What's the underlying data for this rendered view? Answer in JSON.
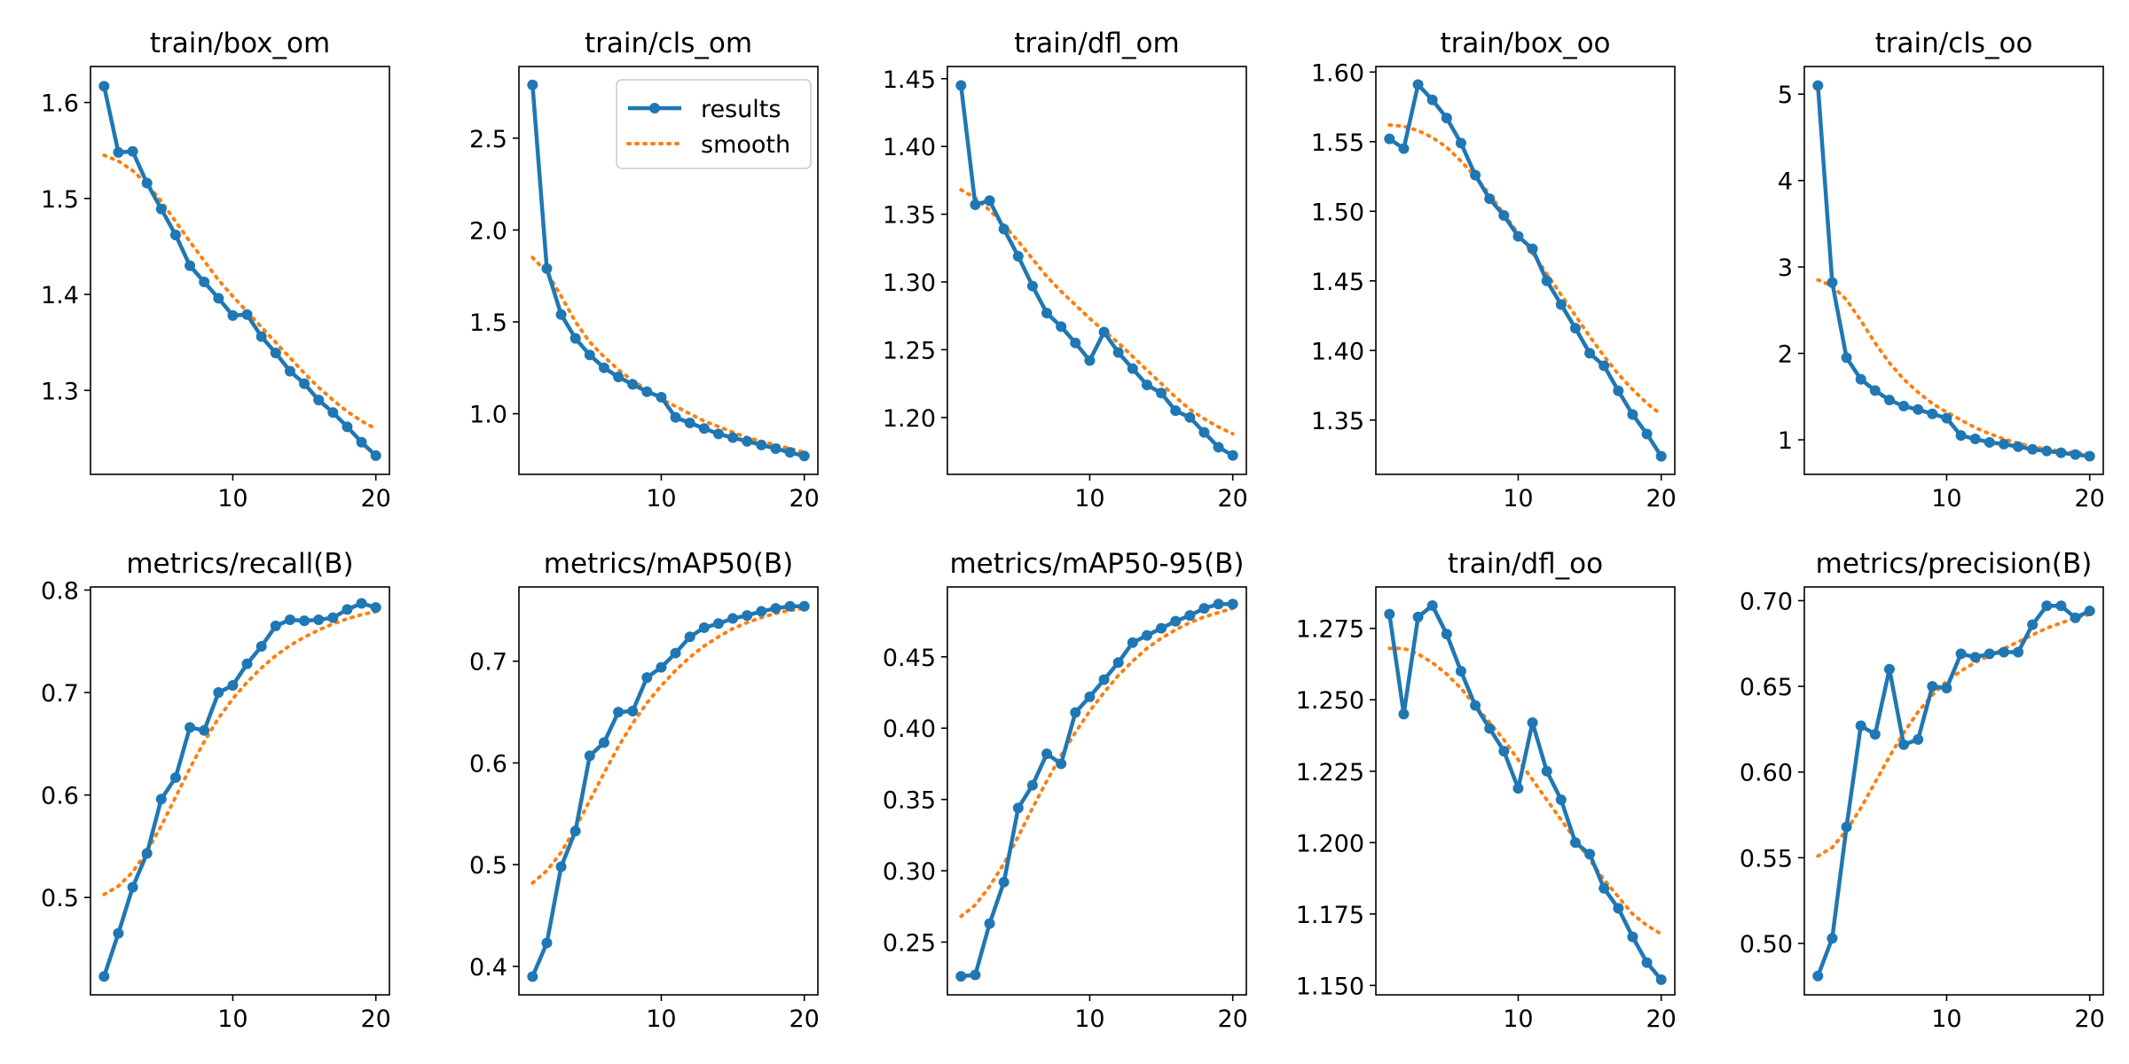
{
  "chart_data": [
    {
      "type": "line",
      "title": "train/box_om",
      "xlabel": "",
      "ylabel": "",
      "xlim": [
        0.05,
        20.95
      ],
      "ylim": [
        1.2125,
        1.6375
      ],
      "xticks": [
        10,
        20
      ],
      "yticks": [
        1.3,
        1.4,
        1.5,
        1.6
      ],
      "grid": false,
      "x": [
        1,
        2,
        3,
        4,
        5,
        6,
        7,
        8,
        9,
        10,
        11,
        12,
        13,
        14,
        15,
        16,
        17,
        18,
        19,
        20
      ],
      "series": [
        {
          "name": "results",
          "values": [
            1.617,
            1.548,
            1.549,
            1.516,
            1.489,
            1.462,
            1.43,
            1.413,
            1.396,
            1.378,
            1.379,
            1.356,
            1.339,
            1.32,
            1.307,
            1.29,
            1.277,
            1.262,
            1.246,
            1.232
          ]
        },
        {
          "name": "smooth",
          "values": [
            1.545,
            1.539,
            1.529,
            1.515,
            1.497,
            1.476,
            1.455,
            1.435,
            1.415,
            1.398,
            1.382,
            1.366,
            1.35,
            1.334,
            1.318,
            1.303,
            1.29,
            1.278,
            1.268,
            1.26
          ]
        }
      ]
    },
    {
      "type": "line",
      "title": "train/cls_om",
      "xlabel": "",
      "ylabel": "",
      "xlim": [
        0.05,
        20.95
      ],
      "ylim": [
        0.67,
        2.89
      ],
      "xticks": [
        10,
        20
      ],
      "yticks": [
        1.0,
        1.5,
        2.0,
        2.5
      ],
      "grid": false,
      "legend": {
        "position": "top-right",
        "entries": [
          "results",
          "smooth"
        ]
      },
      "x": [
        1,
        2,
        3,
        4,
        5,
        6,
        7,
        8,
        9,
        10,
        11,
        12,
        13,
        14,
        15,
        16,
        17,
        18,
        19,
        20
      ],
      "series": [
        {
          "name": "results",
          "values": [
            2.79,
            1.79,
            1.54,
            1.41,
            1.32,
            1.25,
            1.2,
            1.16,
            1.12,
            1.09,
            0.98,
            0.95,
            0.92,
            0.89,
            0.87,
            0.85,
            0.83,
            0.81,
            0.79,
            0.77
          ]
        },
        {
          "name": "smooth",
          "values": [
            1.85,
            1.77,
            1.64,
            1.5,
            1.39,
            1.31,
            1.24,
            1.18,
            1.13,
            1.08,
            1.04,
            1.0,
            0.96,
            0.93,
            0.9,
            0.87,
            0.85,
            0.83,
            0.81,
            0.79
          ]
        }
      ]
    },
    {
      "type": "line",
      "title": "train/dfl_om",
      "xlabel": "",
      "ylabel": "",
      "xlim": [
        0.05,
        20.95
      ],
      "ylim": [
        1.158,
        1.459
      ],
      "xticks": [
        10,
        20
      ],
      "yticks": [
        1.2,
        1.25,
        1.3,
        1.35,
        1.4,
        1.45
      ],
      "grid": false,
      "x": [
        1,
        2,
        3,
        4,
        5,
        6,
        7,
        8,
        9,
        10,
        11,
        12,
        13,
        14,
        15,
        16,
        17,
        18,
        19,
        20
      ],
      "series": [
        {
          "name": "results",
          "values": [
            1.445,
            1.357,
            1.36,
            1.339,
            1.319,
            1.297,
            1.277,
            1.267,
            1.255,
            1.242,
            1.263,
            1.248,
            1.236,
            1.224,
            1.218,
            1.205,
            1.2,
            1.189,
            1.178,
            1.172
          ]
        },
        {
          "name": "smooth",
          "values": [
            1.368,
            1.362,
            1.353,
            1.342,
            1.33,
            1.317,
            1.304,
            1.293,
            1.283,
            1.273,
            1.264,
            1.255,
            1.245,
            1.235,
            1.225,
            1.215,
            1.206,
            1.199,
            1.193,
            1.188
          ]
        }
      ]
    },
    {
      "type": "line",
      "title": "train/box_oo",
      "xlabel": "",
      "ylabel": "",
      "xlim": [
        0.05,
        20.95
      ],
      "ylim": [
        1.311,
        1.604
      ],
      "xticks": [
        10,
        20
      ],
      "yticks": [
        1.35,
        1.4,
        1.45,
        1.5,
        1.55,
        1.6
      ],
      "grid": false,
      "x": [
        1,
        2,
        3,
        4,
        5,
        6,
        7,
        8,
        9,
        10,
        11,
        12,
        13,
        14,
        15,
        16,
        17,
        18,
        19,
        20
      ],
      "series": [
        {
          "name": "results",
          "values": [
            1.552,
            1.545,
            1.591,
            1.58,
            1.567,
            1.549,
            1.526,
            1.509,
            1.497,
            1.482,
            1.473,
            1.45,
            1.433,
            1.416,
            1.398,
            1.389,
            1.371,
            1.354,
            1.34,
            1.324
          ]
        },
        {
          "name": "smooth",
          "values": [
            1.562,
            1.561,
            1.558,
            1.553,
            1.546,
            1.536,
            1.525,
            1.512,
            1.498,
            1.484,
            1.47,
            1.455,
            1.44,
            1.425,
            1.41,
            1.396,
            1.383,
            1.372,
            1.362,
            1.354
          ]
        }
      ]
    },
    {
      "type": "line",
      "title": "train/cls_oo",
      "xlabel": "",
      "ylabel": "",
      "xlim": [
        0.05,
        20.95
      ],
      "ylim": [
        0.6,
        5.32
      ],
      "xticks": [
        10,
        20
      ],
      "yticks": [
        1,
        2,
        3,
        4,
        5
      ],
      "grid": false,
      "x": [
        1,
        2,
        3,
        4,
        5,
        6,
        7,
        8,
        9,
        10,
        11,
        12,
        13,
        14,
        15,
        16,
        17,
        18,
        19,
        20
      ],
      "series": [
        {
          "name": "results",
          "values": [
            5.1,
            2.82,
            1.95,
            1.7,
            1.57,
            1.46,
            1.39,
            1.35,
            1.3,
            1.25,
            1.05,
            1.01,
            0.97,
            0.95,
            0.92,
            0.89,
            0.87,
            0.85,
            0.83,
            0.81
          ]
        },
        {
          "name": "smooth",
          "values": [
            2.85,
            2.78,
            2.62,
            2.38,
            2.12,
            1.89,
            1.7,
            1.55,
            1.42,
            1.32,
            1.23,
            1.14,
            1.07,
            1.01,
            0.96,
            0.92,
            0.89,
            0.87,
            0.85,
            0.84
          ]
        }
      ]
    },
    {
      "type": "line",
      "title": "metrics/recall(B)",
      "xlabel": "",
      "ylabel": "",
      "xlim": [
        0.05,
        20.95
      ],
      "ylim": [
        0.405,
        0.803
      ],
      "xticks": [
        10,
        20
      ],
      "yticks": [
        0.5,
        0.6,
        0.7,
        0.8
      ],
      "grid": false,
      "x": [
        1,
        2,
        3,
        4,
        5,
        6,
        7,
        8,
        9,
        10,
        11,
        12,
        13,
        14,
        15,
        16,
        17,
        18,
        19,
        20
      ],
      "series": [
        {
          "name": "results",
          "values": [
            0.423,
            0.465,
            0.51,
            0.543,
            0.596,
            0.617,
            0.666,
            0.663,
            0.7,
            0.707,
            0.728,
            0.745,
            0.765,
            0.771,
            0.77,
            0.771,
            0.773,
            0.781,
            0.787,
            0.783
          ]
        },
        {
          "name": "smooth",
          "values": [
            0.503,
            0.511,
            0.525,
            0.545,
            0.57,
            0.598,
            0.626,
            0.652,
            0.675,
            0.694,
            0.71,
            0.724,
            0.736,
            0.746,
            0.754,
            0.761,
            0.767,
            0.772,
            0.776,
            0.779
          ]
        }
      ]
    },
    {
      "type": "line",
      "title": "metrics/mAP50(B)",
      "xlabel": "",
      "ylabel": "",
      "xlim": [
        0.05,
        20.95
      ],
      "ylim": [
        0.372,
        0.773
      ],
      "xticks": [
        10,
        20
      ],
      "yticks": [
        0.4,
        0.5,
        0.6,
        0.7
      ],
      "grid": false,
      "x": [
        1,
        2,
        3,
        4,
        5,
        6,
        7,
        8,
        9,
        10,
        11,
        12,
        13,
        14,
        15,
        16,
        17,
        18,
        19,
        20
      ],
      "series": [
        {
          "name": "results",
          "values": [
            0.39,
            0.423,
            0.498,
            0.533,
            0.607,
            0.62,
            0.65,
            0.651,
            0.684,
            0.694,
            0.708,
            0.724,
            0.733,
            0.737,
            0.742,
            0.745,
            0.749,
            0.752,
            0.754,
            0.754
          ]
        },
        {
          "name": "smooth",
          "values": [
            0.482,
            0.494,
            0.512,
            0.536,
            0.563,
            0.59,
            0.616,
            0.639,
            0.659,
            0.676,
            0.691,
            0.704,
            0.715,
            0.724,
            0.732,
            0.738,
            0.743,
            0.747,
            0.75,
            0.752
          ]
        }
      ]
    },
    {
      "type": "line",
      "title": "metrics/mAP50-95(B)",
      "xlabel": "",
      "ylabel": "",
      "xlim": [
        0.05,
        20.95
      ],
      "ylim": [
        0.213,
        0.499
      ],
      "xticks": [
        10,
        20
      ],
      "yticks": [
        0.25,
        0.3,
        0.35,
        0.4,
        0.45
      ],
      "grid": false,
      "x": [
        1,
        2,
        3,
        4,
        5,
        6,
        7,
        8,
        9,
        10,
        11,
        12,
        13,
        14,
        15,
        16,
        17,
        18,
        19,
        20
      ],
      "series": [
        {
          "name": "results",
          "values": [
            0.226,
            0.227,
            0.263,
            0.292,
            0.344,
            0.36,
            0.382,
            0.375,
            0.411,
            0.422,
            0.434,
            0.446,
            0.46,
            0.465,
            0.47,
            0.475,
            0.479,
            0.484,
            0.487,
            0.487
          ]
        },
        {
          "name": "smooth",
          "values": [
            0.268,
            0.276,
            0.289,
            0.305,
            0.324,
            0.344,
            0.363,
            0.381,
            0.397,
            0.412,
            0.425,
            0.437,
            0.447,
            0.456,
            0.463,
            0.469,
            0.474,
            0.478,
            0.481,
            0.484
          ]
        }
      ]
    },
    {
      "type": "line",
      "title": "train/dfl_oo",
      "xlabel": "",
      "ylabel": "",
      "xlim": [
        0.05,
        20.95
      ],
      "ylim": [
        1.1467,
        1.2895
      ],
      "xticks": [
        10,
        20
      ],
      "yticks": [
        1.15,
        1.175,
        1.2,
        1.225,
        1.25,
        1.275
      ],
      "grid": false,
      "x": [
        1,
        2,
        3,
        4,
        5,
        6,
        7,
        8,
        9,
        10,
        11,
        12,
        13,
        14,
        15,
        16,
        17,
        18,
        19,
        20
      ],
      "series": [
        {
          "name": "results",
          "values": [
            1.28,
            1.245,
            1.279,
            1.283,
            1.273,
            1.26,
            1.248,
            1.24,
            1.232,
            1.219,
            1.242,
            1.225,
            1.215,
            1.2,
            1.196,
            1.184,
            1.177,
            1.167,
            1.158,
            1.152
          ]
        },
        {
          "name": "smooth",
          "values": [
            1.268,
            1.268,
            1.266,
            1.263,
            1.259,
            1.254,
            1.248,
            1.242,
            1.236,
            1.229,
            1.222,
            1.215,
            1.208,
            1.201,
            1.194,
            1.187,
            1.181,
            1.175,
            1.171,
            1.168
          ]
        }
      ]
    },
    {
      "type": "line",
      "title": "metrics/precision(B)",
      "xlabel": "",
      "ylabel": "",
      "xlim": [
        0.05,
        20.95
      ],
      "ylim": [
        0.47,
        0.708
      ],
      "xticks": [
        10,
        20
      ],
      "yticks": [
        0.5,
        0.55,
        0.6,
        0.65,
        0.7
      ],
      "grid": false,
      "x": [
        1,
        2,
        3,
        4,
        5,
        6,
        7,
        8,
        9,
        10,
        11,
        12,
        13,
        14,
        15,
        16,
        17,
        18,
        19,
        20
      ],
      "series": [
        {
          "name": "results",
          "values": [
            0.481,
            0.503,
            0.568,
            0.627,
            0.622,
            0.66,
            0.616,
            0.619,
            0.65,
            0.649,
            0.669,
            0.667,
            0.669,
            0.67,
            0.67,
            0.686,
            0.697,
            0.697,
            0.69,
            0.694
          ]
        },
        {
          "name": "smooth",
          "values": [
            0.551,
            0.556,
            0.566,
            0.579,
            0.594,
            0.609,
            0.623,
            0.635,
            0.645,
            0.653,
            0.659,
            0.664,
            0.668,
            0.672,
            0.676,
            0.68,
            0.684,
            0.687,
            0.69,
            0.692
          ]
        }
      ]
    }
  ],
  "colors": {
    "results": "#1f77b4",
    "smooth": "#ff7f0e",
    "axis": "#000000",
    "background": "#ffffff"
  }
}
